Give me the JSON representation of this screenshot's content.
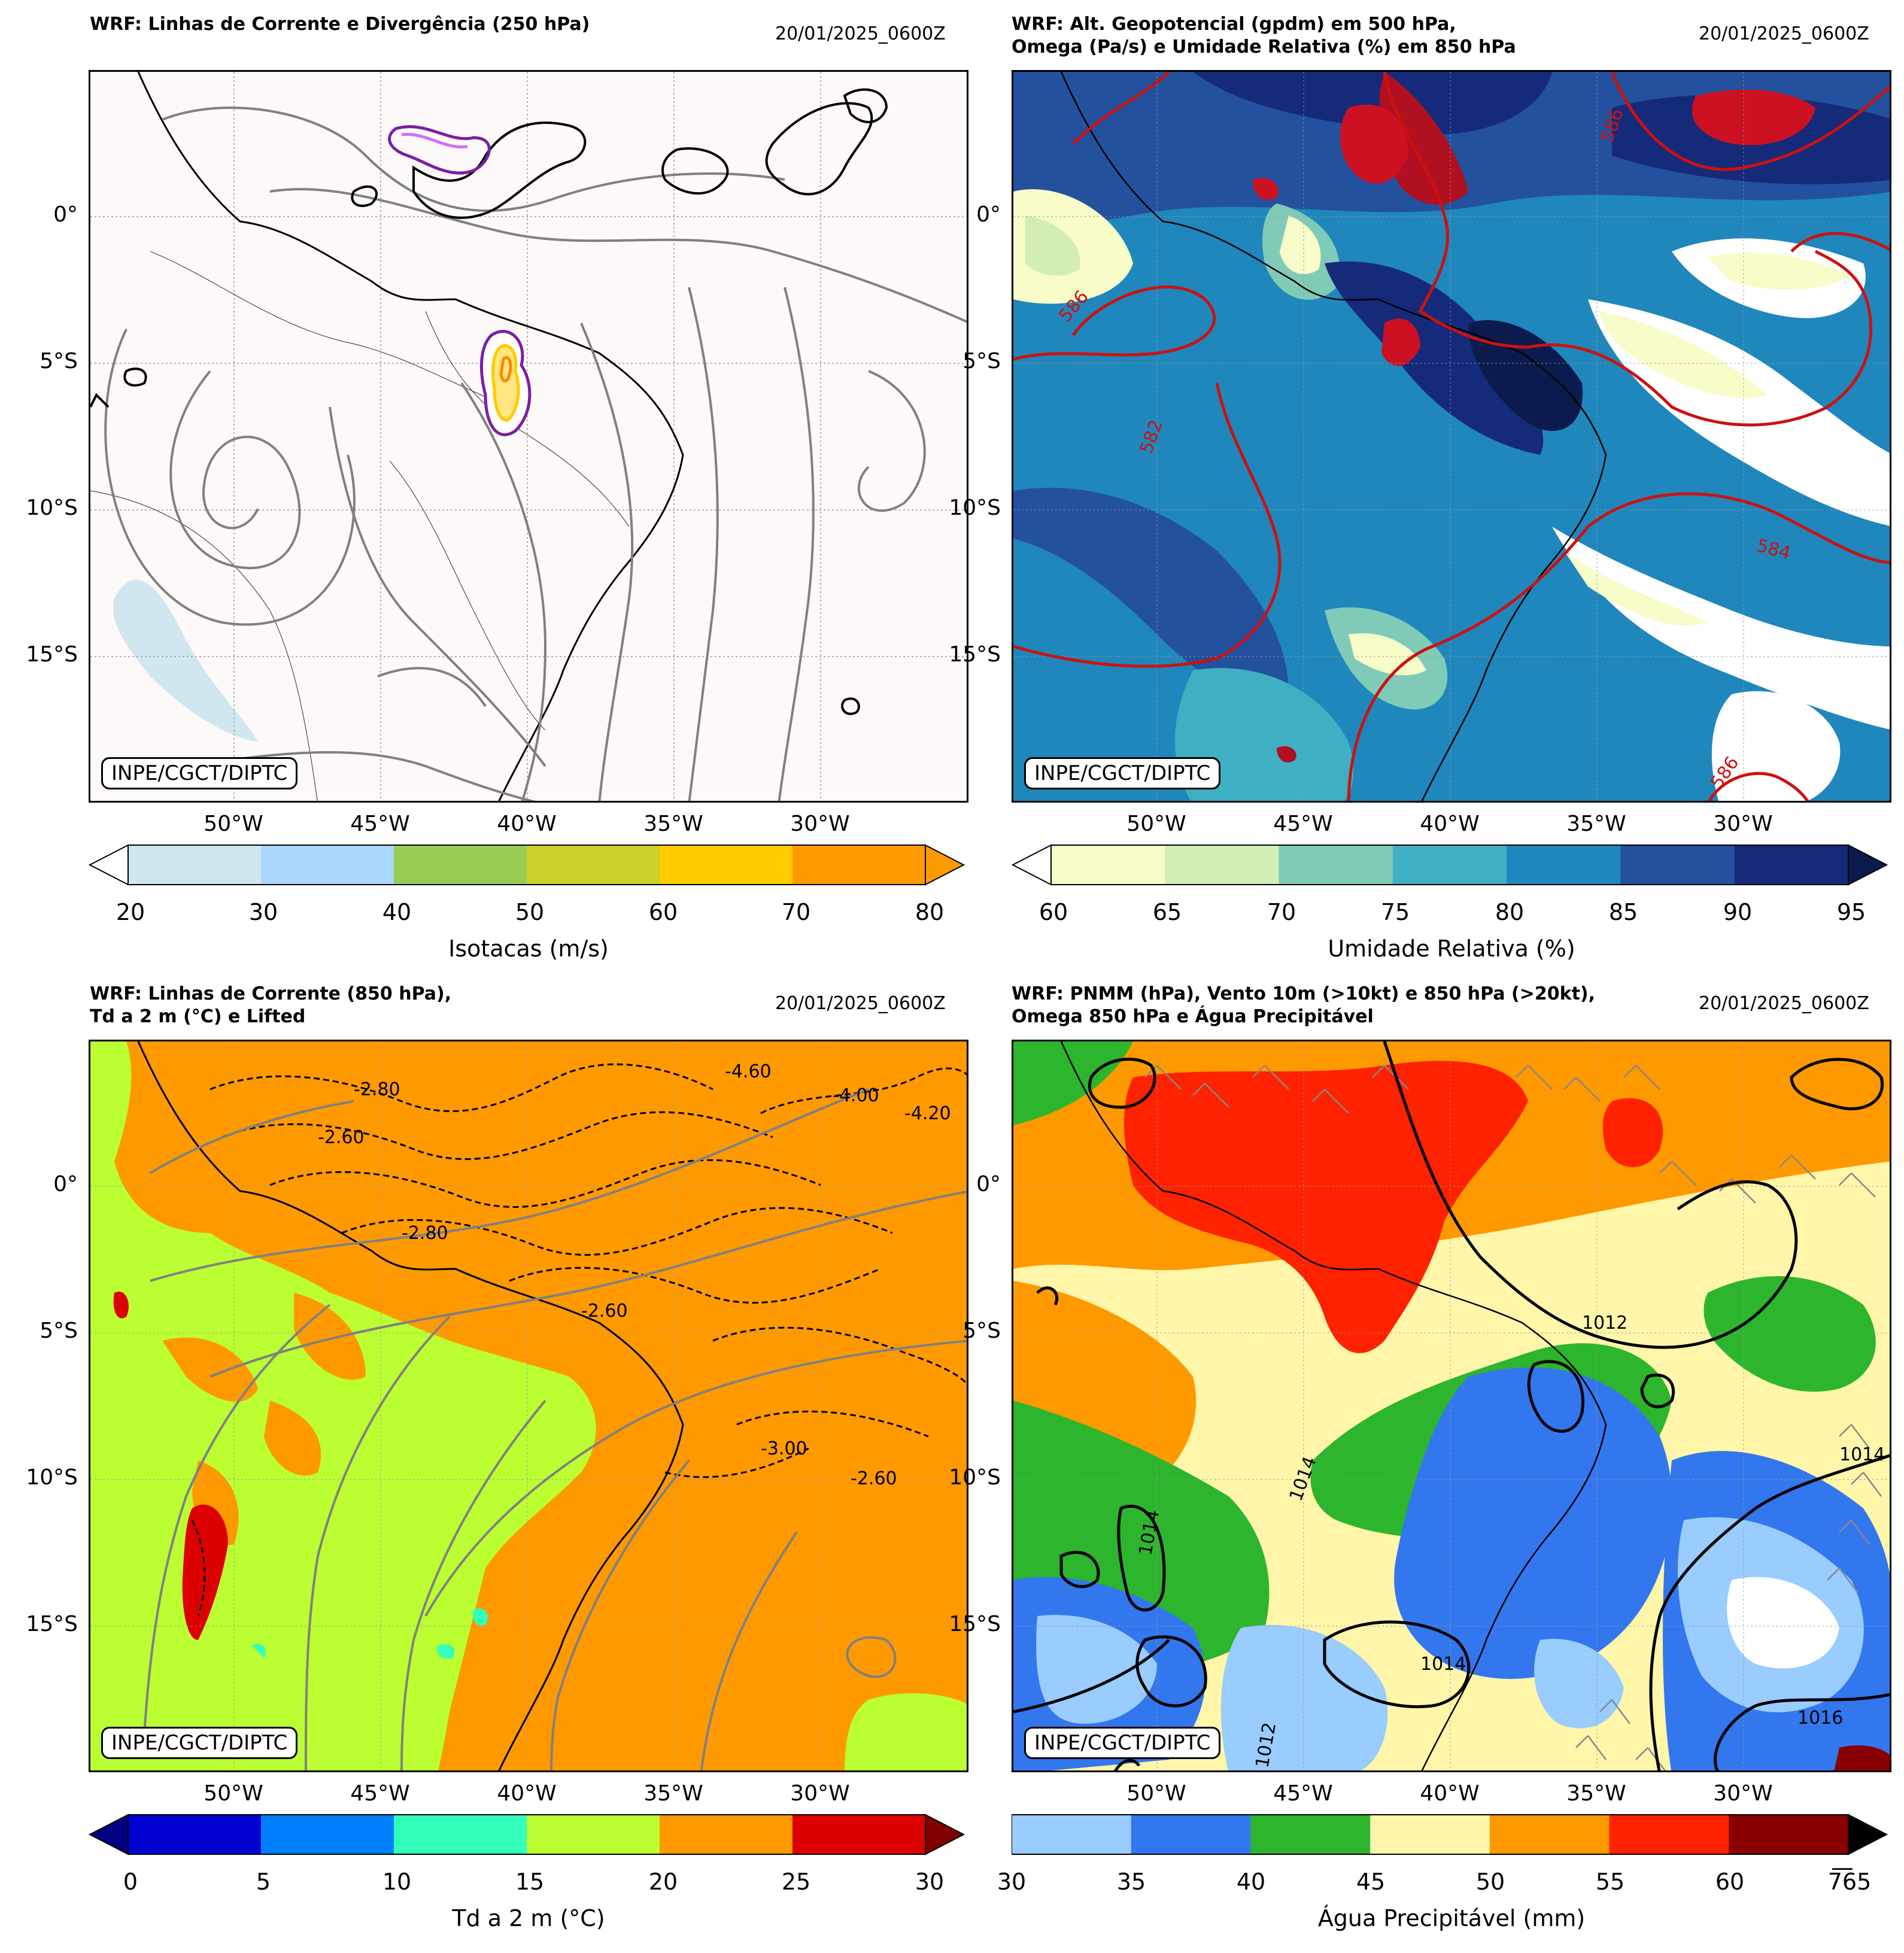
{
  "panels": [
    {
      "id": "p1",
      "title": "WRF: Linhas de Corrente e Divergência (250 hPa)",
      "date": "20/01/2025_0600Z",
      "credit": "INPE/CGCT/DIPTC",
      "colorbar": {
        "label": "Isotacas (m/s)",
        "ticks": [
          "20",
          "30",
          "40",
          "50",
          "60",
          "70",
          "80"
        ],
        "colors": [
          "#d1e7ef",
          "#aad9ff",
          "#99cc55",
          "#c9d12a",
          "#ffcc00",
          "#ff9900"
        ],
        "extend_left_color": "#ffffff",
        "extend_right_color": "#ff9900"
      }
    },
    {
      "id": "p2",
      "title": "WRF: Alt. Geopotencial (gpdm) em 500 hPa,\nOmega (Pa/s) e Umidade Relativa (%) em 850 hPa",
      "date": "20/01/2025_0600Z",
      "credit": "INPE/CGCT/DIPTC",
      "contour_labels": [
        "586",
        "584",
        "582",
        "586",
        "586"
      ],
      "colorbar": {
        "label": "Umidade Relativa (%)",
        "ticks": [
          "60",
          "65",
          "70",
          "75",
          "80",
          "85",
          "90",
          "95"
        ],
        "colors": [
          "#f7fcc8",
          "#d3eeb4",
          "#80cbb7",
          "#3fb0c4",
          "#1f87bc",
          "#23519e",
          "#162a7a"
        ],
        "extend_left_color": "#ffffff",
        "extend_right_color": "#0b1b4e"
      }
    },
    {
      "id": "p3",
      "title": "WRF: Linhas de Corrente (850 hPa),\nTd a 2 m (°C) e Lifted",
      "date": "20/01/2025_0600Z",
      "credit": "INPE/CGCT/DIPTC",
      "contour_labels": [
        "-2.80",
        "-2.60",
        "-2.80",
        "-4.60",
        "-4.00",
        "-4.20",
        "-3.00",
        "-2.60",
        "-2.60"
      ],
      "colorbar": {
        "label": "Td a 2 m (°C)",
        "ticks": [
          "0",
          "5",
          "10",
          "15",
          "20",
          "25",
          "30"
        ],
        "colors": [
          "#0000d0",
          "#0080ff",
          "#33ffbb",
          "#bbff33",
          "#ff9900",
          "#dd0000"
        ],
        "extend_left_color": "#000080",
        "extend_right_color": "#800000"
      }
    },
    {
      "id": "p4",
      "title": "WRF: PNMM (hPa), Vento 10m (>10kt) e 850 hPa (>20kt),\nOmega 850 hPa e Água Precipitável",
      "date": "20/01/2025_0600Z",
      "credit": "INPE/CGCT/DIPTC",
      "contour_labels": [
        "1012",
        "1014",
        "1014",
        "1014",
        "1014",
        "1016",
        "1012"
      ],
      "colorbar": {
        "label": "Água Precipitável (mm)",
        "ticks": [
          "30",
          "35",
          "40",
          "45",
          "50",
          "55",
          "60",
          "7͞65"
        ],
        "colors": [
          "#99ccff",
          "#3377ee",
          "#2db52d",
          "#fff6aa",
          "#ff9900",
          "#ff2200",
          "#880000"
        ],
        "extend_right_color": "#000000"
      }
    }
  ],
  "axes": {
    "lat_labels": [
      "0°",
      "5°S",
      "10°S",
      "15°S"
    ],
    "lon_labels": [
      "50°W",
      "45°W",
      "40°W",
      "35°W",
      "30°W"
    ]
  }
}
